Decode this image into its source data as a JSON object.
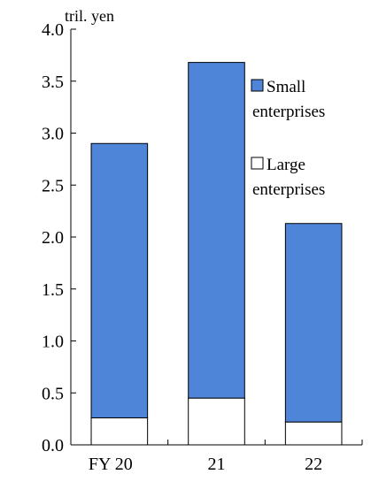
{
  "chart_data": {
    "type": "bar",
    "stacked": true,
    "unit_label": "tril. yen",
    "categories": [
      "FY  20",
      "21",
      "22"
    ],
    "series": [
      {
        "name": "Large\nenterprises",
        "color": "#ffffff",
        "values": [
          0.26,
          0.45,
          0.22
        ]
      },
      {
        "name": "Small\nenterprises",
        "color": "#4f85d8",
        "values": [
          2.64,
          3.23,
          1.91
        ]
      }
    ],
    "legend_order": [
      1,
      0
    ],
    "y_ticks": [
      "0.0",
      "0.5",
      "1.0",
      "1.5",
      "2.0",
      "2.5",
      "3.0",
      "3.5",
      "4.0"
    ],
    "ylim": [
      0,
      4.0
    ],
    "grid": false,
    "legend_position": "right"
  }
}
